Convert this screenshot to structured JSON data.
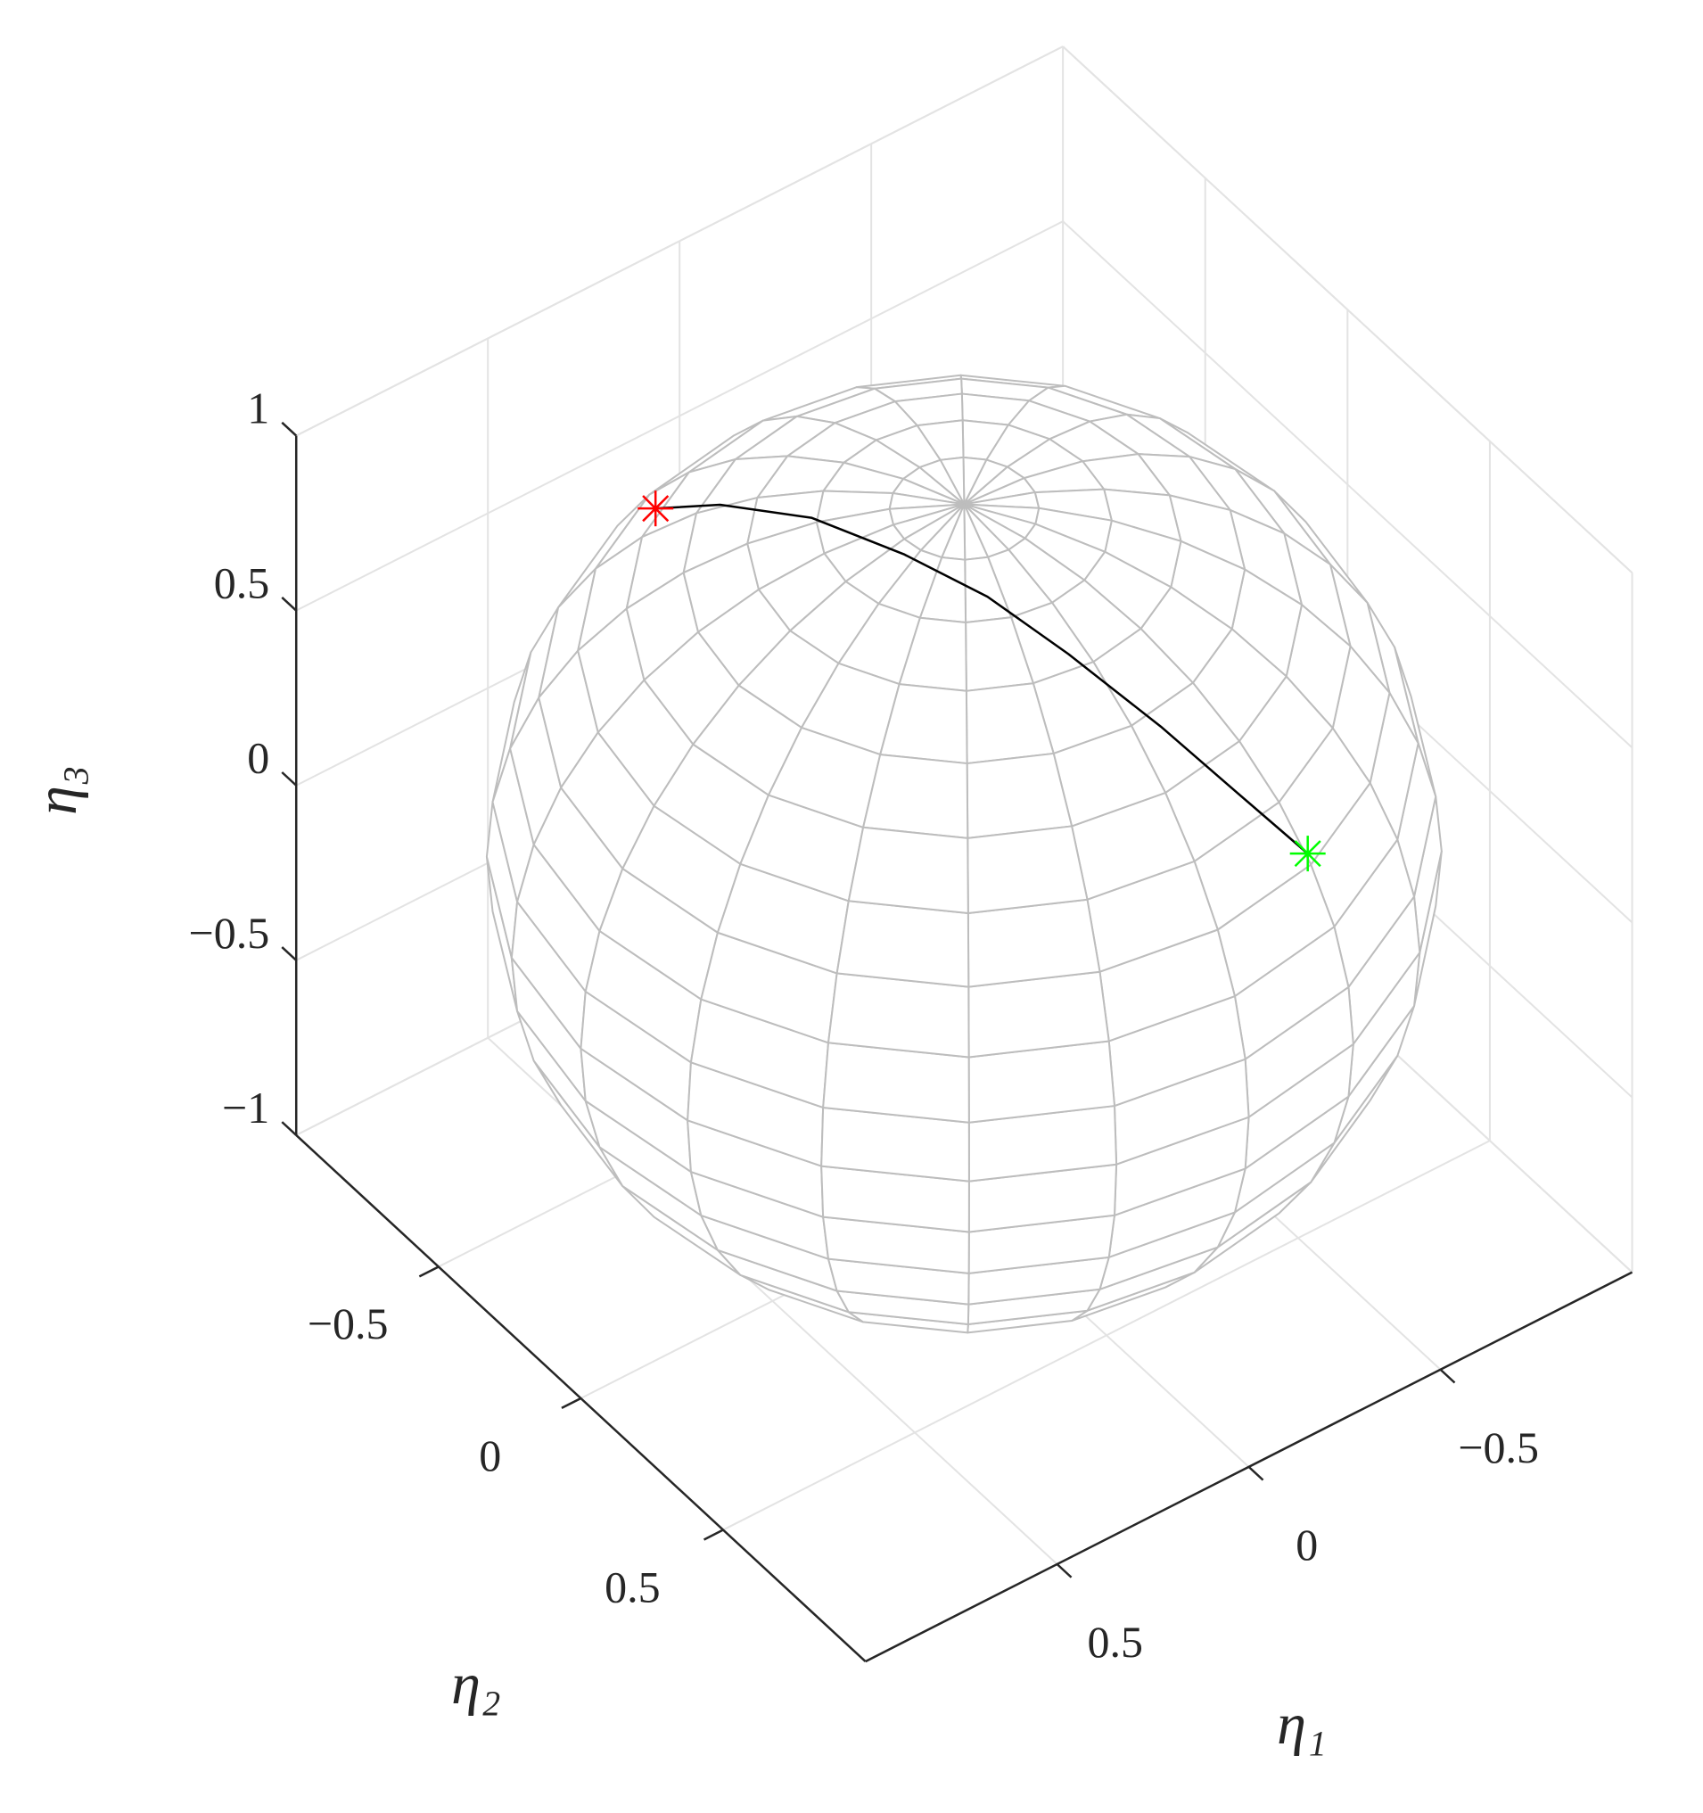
{
  "chart_data": {
    "type": "line3d",
    "xlabel": "η₁",
    "ylabel": "η₂",
    "zlabel": "η₃",
    "xlim": [
      -1,
      1
    ],
    "ylim": [
      -1,
      1
    ],
    "zlim": [
      -1,
      1
    ],
    "xticks": [
      {
        "value": -0.5,
        "label": "−0.5"
      },
      0,
      0.5
    ],
    "yticks": [
      {
        "value": -0.5,
        "label": "−0.5"
      },
      0,
      0.5
    ],
    "zticks": [
      {
        "value": -1,
        "label": "−1"
      },
      {
        "value": -0.5,
        "label": "−0.5"
      },
      0,
      0.5,
      1
    ],
    "grid": true,
    "sphere": {
      "radius": 1,
      "segments": 20,
      "color": "#bdbdbd"
    },
    "series": [
      {
        "color": "#000000",
        "x": [
          0.33,
          0.31,
          0.25,
          0.18,
          0.11,
          0.04,
          -0.06,
          -0.15,
          -0.28
        ],
        "y": [
          -0.64,
          -0.44,
          -0.2,
          0.03,
          0.23,
          0.42,
          0.61,
          0.73,
          0.83
        ],
        "z": [
          0.69,
          0.84,
          0.95,
          0.98,
          0.97,
          0.91,
          0.79,
          0.66,
          0.47
        ]
      },
      {
        "marker": "*",
        "color": "#ff0000",
        "x": [
          0.33
        ],
        "y": [
          -0.64
        ],
        "z": [
          0.69
        ]
      },
      {
        "marker": "*",
        "color": "#00ff00",
        "x": [
          -0.28
        ],
        "y": [
          0.83
        ],
        "z": [
          0.47
        ]
      }
    ]
  }
}
